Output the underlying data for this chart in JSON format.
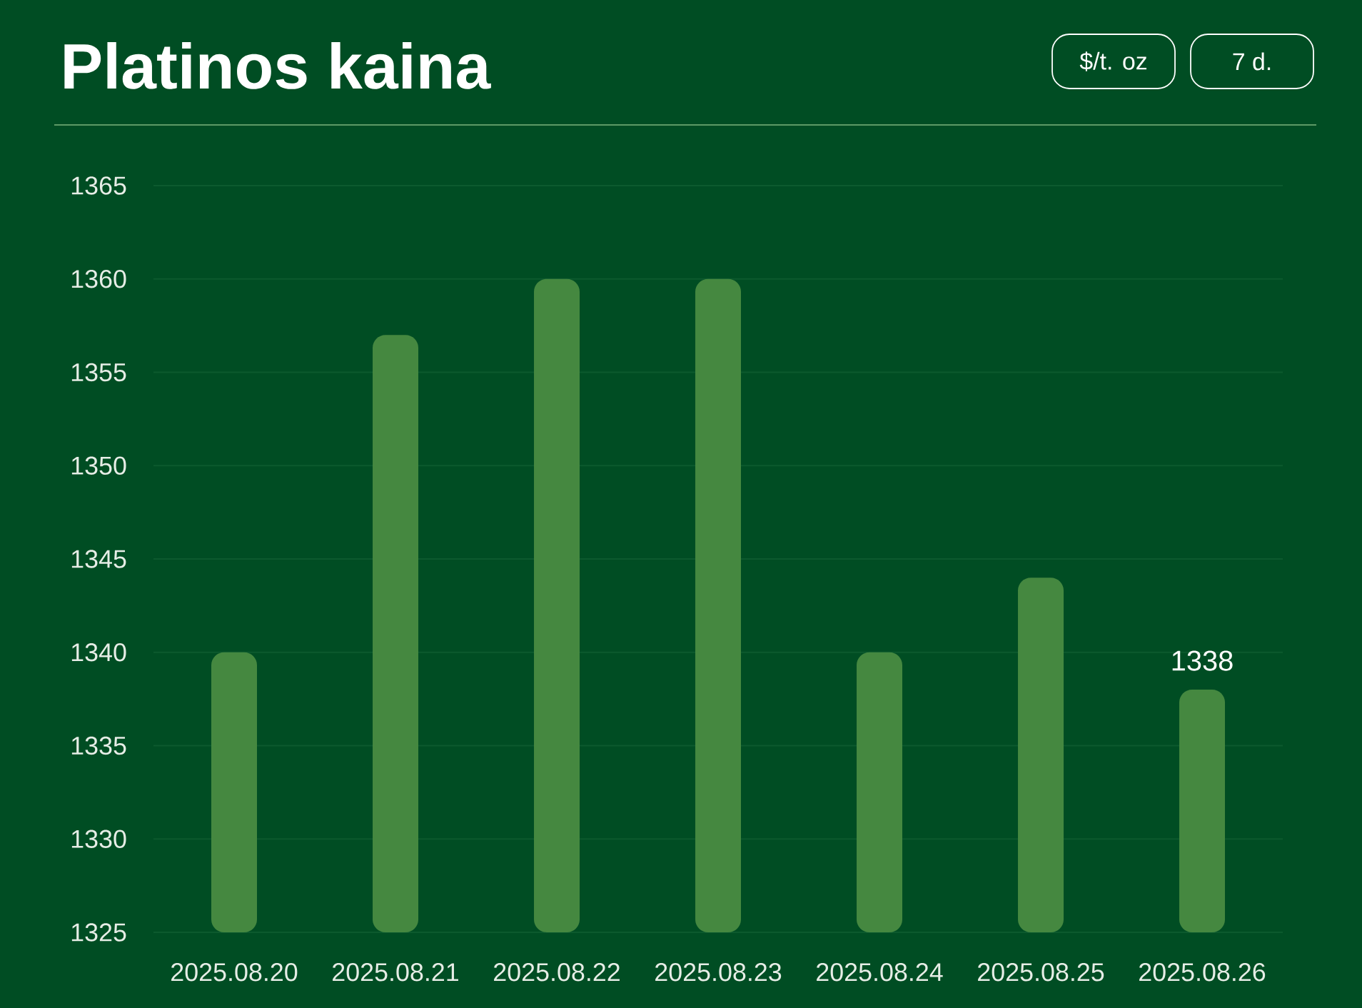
{
  "chart_data": {
    "type": "bar",
    "title": "Platinos kaina",
    "categories": [
      "2025.08.20",
      "2025.08.21",
      "2025.08.22",
      "2025.08.23",
      "2025.08.24",
      "2025.08.25",
      "2025.08.26"
    ],
    "values": [
      1340,
      1357,
      1360,
      1360,
      1340,
      1344,
      1338
    ],
    "color": "#458840",
    "ylim": [
      1325,
      1365
    ],
    "yticks": [
      1325,
      1330,
      1335,
      1340,
      1345,
      1350,
      1355,
      1360,
      1365
    ],
    "grid": "y",
    "value_labels": [
      null,
      null,
      null,
      null,
      null,
      null,
      "1338"
    ],
    "annotations": [
      "$/t. oz",
      "7 d."
    ]
  }
}
